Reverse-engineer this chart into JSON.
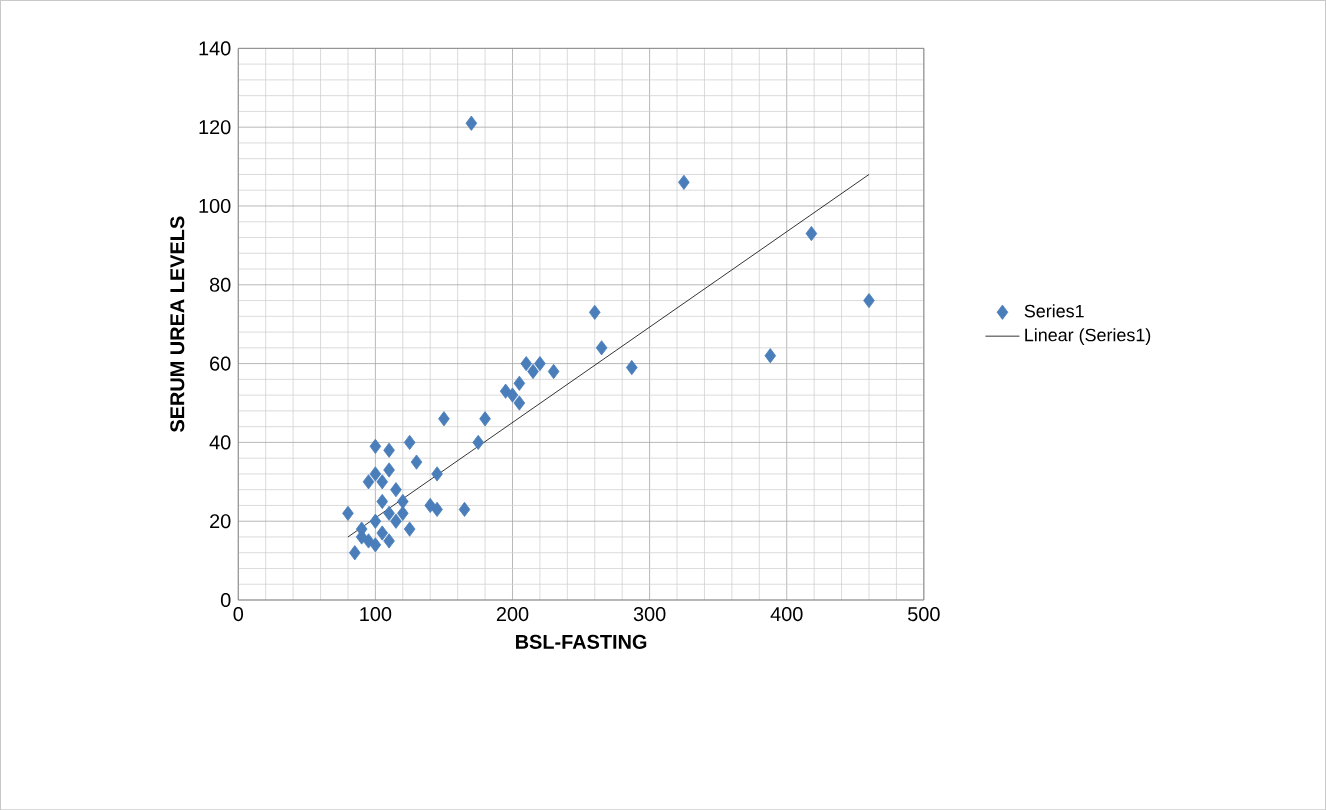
{
  "chart_data": {
    "type": "scatter",
    "xlabel": "BSL-FASTING",
    "ylabel": "SERUM UREA LEVELS",
    "xlim": [
      0,
      500
    ],
    "ylim": [
      0,
      140
    ],
    "xticks": [
      0,
      100,
      200,
      300,
      400,
      500
    ],
    "yticks": [
      0,
      20,
      40,
      60,
      80,
      100,
      120,
      140
    ],
    "grid": true,
    "legend": "right",
    "marker": "diamond",
    "series": [
      {
        "name": "Series1",
        "color": "#4a7ebb",
        "x": [
          170,
          325,
          418,
          460,
          265,
          260,
          388,
          287,
          230,
          220,
          215,
          210,
          205,
          200,
          205,
          195,
          180,
          175,
          150,
          145,
          125,
          130,
          110,
          100,
          165,
          140,
          145,
          95,
          100,
          105,
          110,
          80,
          90,
          85,
          95,
          100,
          105,
          110,
          115,
          120,
          125,
          120,
          110,
          100,
          90,
          115,
          105
        ],
        "values": [
          121,
          106,
          93,
          76,
          64,
          73,
          62,
          59,
          58,
          60,
          58,
          60,
          55,
          52,
          50,
          53,
          46,
          40,
          46,
          32,
          40,
          35,
          38,
          39,
          23,
          24,
          23,
          30,
          32,
          30,
          33,
          22,
          18,
          12,
          15,
          20,
          17,
          22,
          20,
          25,
          18,
          22,
          15,
          14,
          16,
          28,
          25
        ]
      },
      {
        "name": "Linear (Series1)",
        "type": "line",
        "color": "#000000",
        "marker": "none",
        "x": [
          80,
          460
        ],
        "values": [
          16,
          108
        ]
      }
    ]
  }
}
